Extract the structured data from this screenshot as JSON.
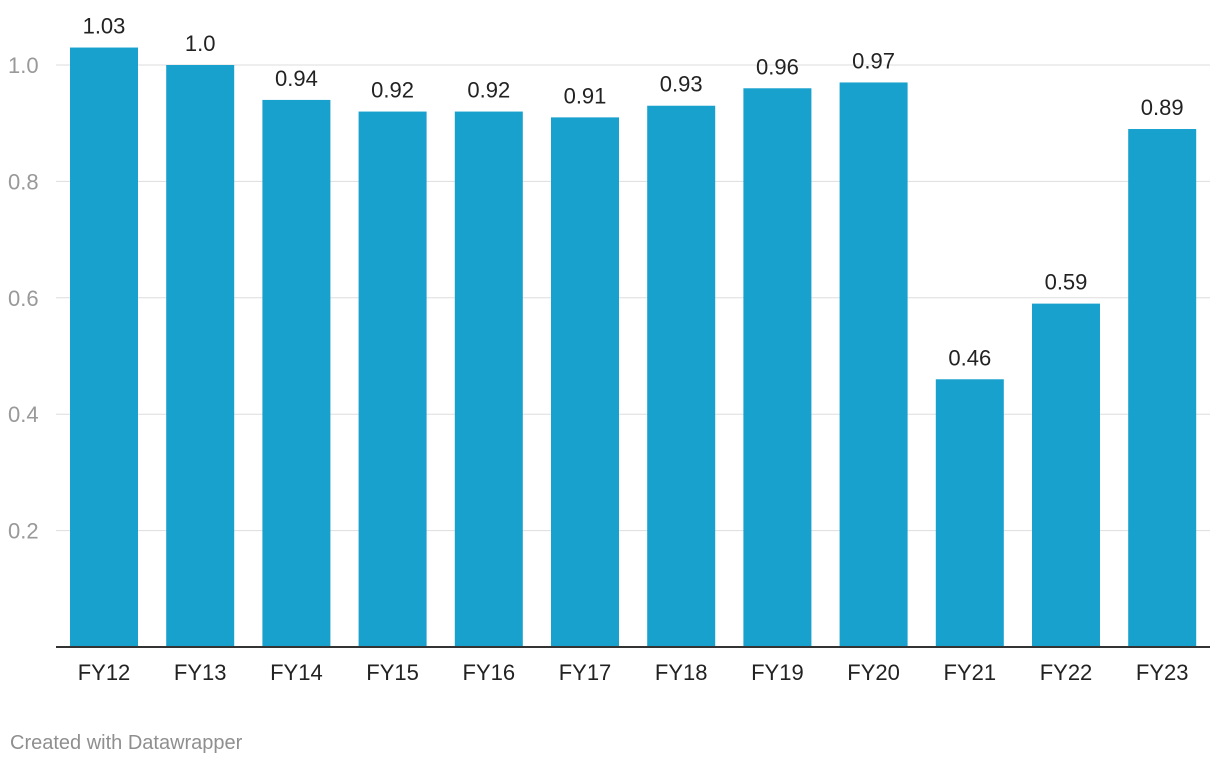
{
  "chart_data": {
    "type": "bar",
    "title": "",
    "xlabel": "",
    "ylabel": "",
    "categories": [
      "FY12",
      "FY13",
      "FY14",
      "FY15",
      "FY16",
      "FY17",
      "FY18",
      "FY19",
      "FY20",
      "FY21",
      "FY22",
      "FY23"
    ],
    "values": [
      1.03,
      1.0,
      0.94,
      0.92,
      0.92,
      0.91,
      0.93,
      0.96,
      0.97,
      0.46,
      0.59,
      0.89
    ],
    "value_labels": [
      "1.03",
      "1.0",
      "0.94",
      "0.92",
      "0.92",
      "0.91",
      "0.93",
      "0.96",
      "0.97",
      "0.46",
      "0.59",
      "0.89"
    ],
    "yticks": [
      0.2,
      0.4,
      0.6,
      0.8,
      1.0
    ],
    "ytick_labels": [
      "0.2",
      "0.4",
      "0.6",
      "0.8",
      "1.0"
    ],
    "ylim": [
      0,
      1.0
    ],
    "grid": true,
    "bar_color": "#18a1cd"
  },
  "credit": "Created with Datawrapper"
}
